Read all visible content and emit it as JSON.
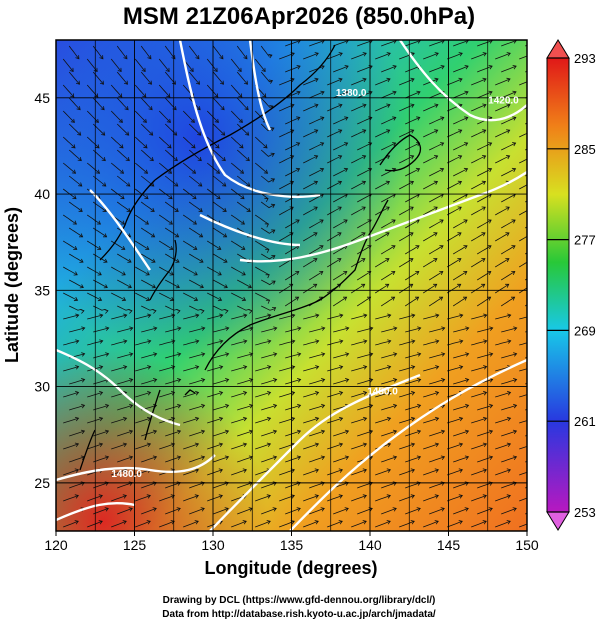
{
  "title": "MSM 21Z06Apr2026 (850.0hPa)",
  "map": {
    "xlabel": "Longitude (degrees)",
    "ylabel": "Latitude  (degrees)",
    "lon_range": [
      120,
      150
    ],
    "lat_range": [
      22.5,
      48
    ],
    "lon_ticks": [
      "120",
      "125",
      "130",
      "135",
      "140",
      "145",
      "150"
    ],
    "lat_ticks": [
      "25",
      "30",
      "35",
      "40",
      "45"
    ],
    "grid": true,
    "field": "temperature (K) shading with wind streamlines and white height contours",
    "contour_labels": [
      {
        "text": "1480.0",
        "lon": 124.5,
        "lat": 25.3
      },
      {
        "text": "1450.0",
        "lon": 140.8,
        "lat": 29.6
      },
      {
        "text": "1380.0",
        "lon": 138.8,
        "lat": 45.1
      },
      {
        "text": "1420.0",
        "lon": 148.5,
        "lat": 44.7
      }
    ]
  },
  "colorbar": {
    "labels": [
      "293",
      "285",
      "277",
      "269",
      "261",
      "253"
    ],
    "min": 253,
    "max": 293,
    "colors": [
      "#b020c0",
      "#3050e0",
      "#20c8e0",
      "#30c840",
      "#e8e020",
      "#f08020",
      "#e02020"
    ]
  },
  "credits": [
    "Drawing by DCL (https://www.gfd-dennou.org/library/dcl/)",
    "Data from http://database.rish.kyoto-u.ac.jp/arch/jmadata/"
  ]
}
